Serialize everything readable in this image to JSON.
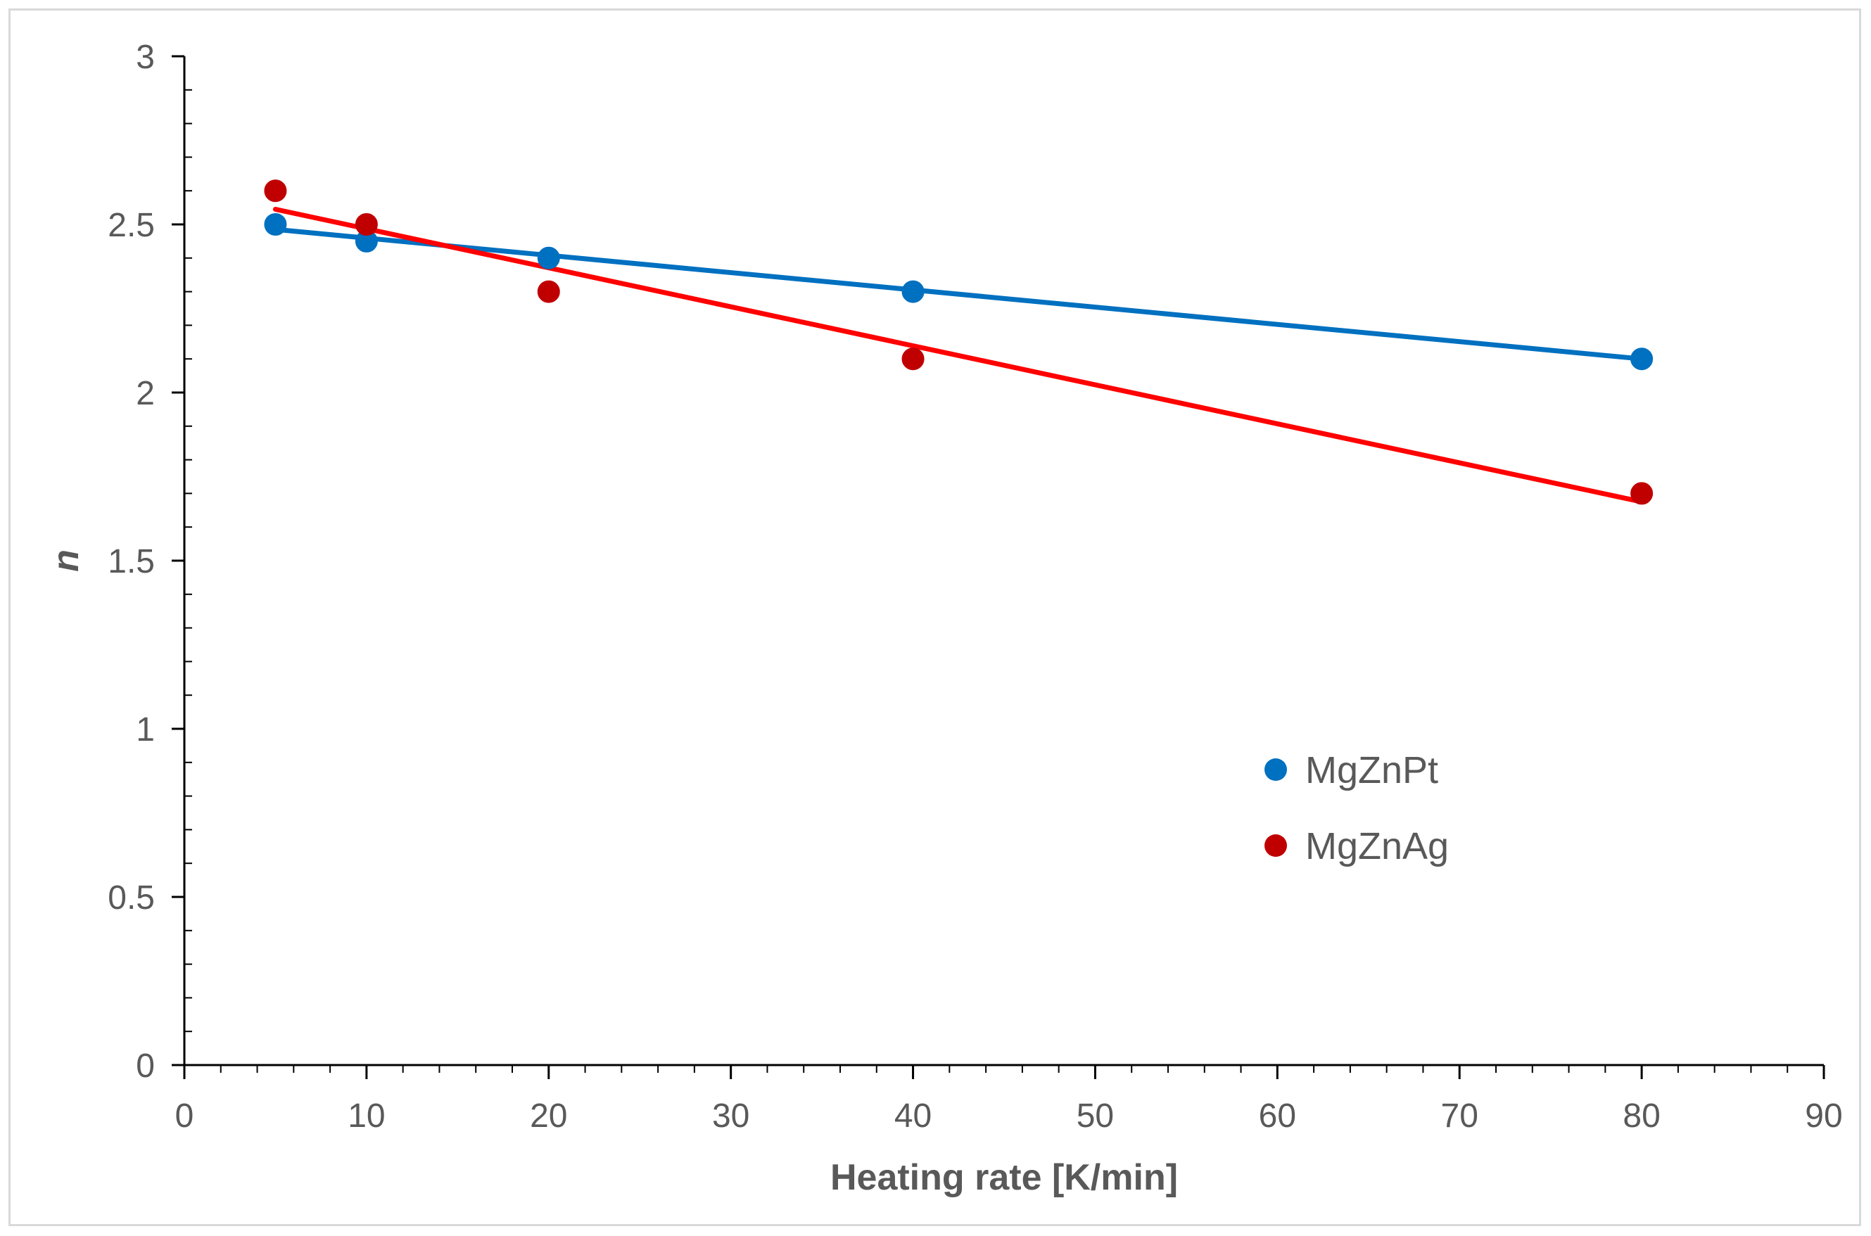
{
  "chart_data": {
    "type": "scatter",
    "title": "",
    "xlabel": "Heating rate [K/min]",
    "ylabel": "n",
    "xlim": [
      0,
      90
    ],
    "ylim": [
      0,
      3
    ],
    "x_ticks": [
      0,
      10,
      20,
      30,
      40,
      50,
      60,
      70,
      80,
      90
    ],
    "y_ticks": [
      0,
      0.5,
      1,
      1.5,
      2,
      2.5,
      3
    ],
    "x_tick_labels": [
      "0",
      "10",
      "20",
      "30",
      "40",
      "50",
      "60",
      "70",
      "80",
      "90"
    ],
    "y_tick_labels": [
      "0",
      "0.5",
      "1",
      "1.5",
      "2",
      "2.5",
      "3"
    ],
    "legend_position": "center-right",
    "series": [
      {
        "name": "MgZnPt",
        "color": "#0070c0",
        "trendline_color": "#0070c0",
        "x": [
          5,
          10,
          20,
          40,
          80
        ],
        "y": [
          2.5,
          2.45,
          2.4,
          2.3,
          2.1
        ],
        "trendline": [
          [
            5,
            2.485
          ],
          [
            80,
            2.1
          ]
        ]
      },
      {
        "name": "MgZnAg",
        "color": "#c00000",
        "trendline_color": "#ff0000",
        "x": [
          5,
          10,
          20,
          40,
          80
        ],
        "y": [
          2.6,
          2.5,
          2.3,
          2.1,
          1.7
        ],
        "trendline": [
          [
            5,
            2.545
          ],
          [
            80,
            1.675
          ]
        ]
      }
    ]
  }
}
